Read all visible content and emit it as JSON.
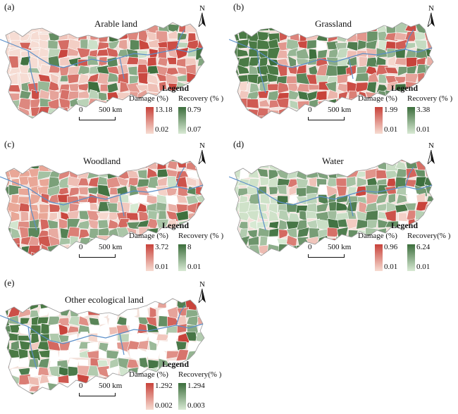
{
  "panels": [
    {
      "id": "a",
      "letter": "(a)",
      "title": "Arable land",
      "north_label": "N",
      "legend_title": "Legend",
      "damage": {
        "label": "Damage (%)",
        "max": "13.18",
        "min": "0.02",
        "color_high": "#c8423a",
        "color_low": "#f7dcd2"
      },
      "recovery": {
        "label": "Recovery (% )",
        "max": "0.79",
        "min": "0.07",
        "color_high": "#3c6e3c",
        "color_low": "#d8ead4"
      },
      "scale": {
        "zero": "0",
        "value": "500 km"
      }
    },
    {
      "id": "b",
      "letter": "(b)",
      "title": "Grassland",
      "north_label": "N",
      "legend_title": "Legend",
      "damage": {
        "label": "Damage (%)",
        "max": "1.99",
        "min": "0.01",
        "color_high": "#c8423a",
        "color_low": "#f7dcd2"
      },
      "recovery": {
        "label": "Recovery (% )",
        "max": "3.38",
        "min": "0.01",
        "color_high": "#3c6e3c",
        "color_low": "#d8ead4"
      },
      "scale": {
        "zero": "0",
        "value": "500 km"
      }
    },
    {
      "id": "c",
      "letter": "(c)",
      "title": "Woodland",
      "north_label": "N",
      "legend_title": "Legend",
      "damage": {
        "label": "Damage (%)",
        "max": "3.72",
        "min": "0.01",
        "color_high": "#c8423a",
        "color_low": "#f7dcd2"
      },
      "recovery": {
        "label": "Recovery (% )",
        "max": "8",
        "min": "0.01",
        "color_high": "#3c6e3c",
        "color_low": "#d8ead4"
      },
      "scale": {
        "zero": "0",
        "value": "500 km"
      }
    },
    {
      "id": "d",
      "letter": "(d)",
      "title": "Water",
      "north_label": "N",
      "legend_title": "Legend",
      "damage": {
        "label": "Damage (%)",
        "max": "0.96",
        "min": "0.01",
        "color_high": "#c8423a",
        "color_low": "#f7dcd2"
      },
      "recovery": {
        "label": "Recovery(% )",
        "max": "6.24",
        "min": "0.01",
        "color_high": "#3c6e3c",
        "color_low": "#d8ead4"
      },
      "scale": {
        "zero": "0",
        "value": "500 km"
      }
    },
    {
      "id": "e",
      "letter": "(e)",
      "title": "Other ecological land",
      "north_label": "N",
      "legend_title": "Legend",
      "damage": {
        "label": "Damage (%)",
        "max": "1.292",
        "min": "0.002",
        "color_high": "#c8423a",
        "color_low": "#f7dcd2"
      },
      "recovery": {
        "label": "Recovery(% )",
        "max": "1.294",
        "min": "0.003",
        "color_high": "#3c6e3c",
        "color_low": "#d8ead4"
      },
      "scale": {
        "zero": "0",
        "value": "500 km"
      }
    }
  ],
  "colors": {
    "river": "#5b8fc9",
    "boundary": "#ffffff",
    "no_data": "#ffffff",
    "outline": "#999999"
  }
}
